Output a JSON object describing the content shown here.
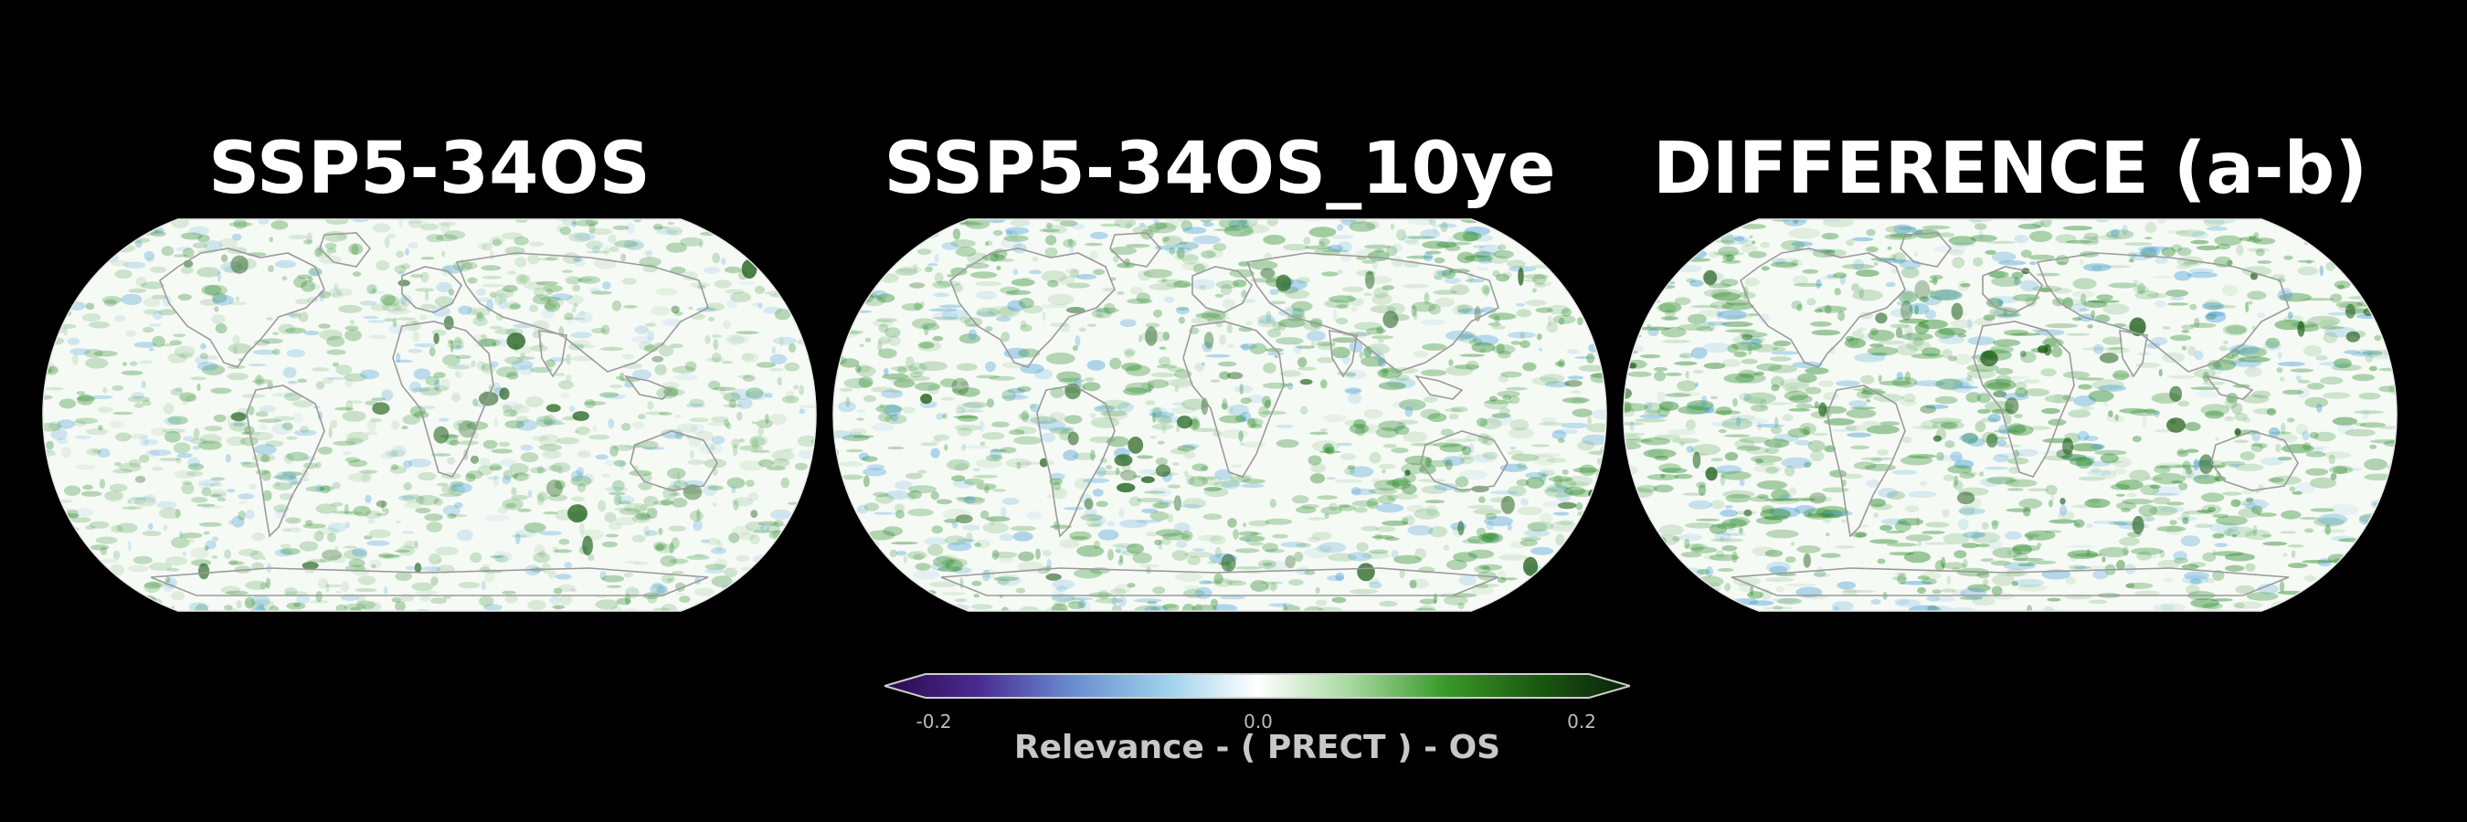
{
  "panels": [
    {
      "title": "SSP5-34OS",
      "name": "panel-ssp5-34os"
    },
    {
      "title": "SSP5-34OS_10ye",
      "name": "panel-ssp5-34os-10ye"
    },
    {
      "title": "DIFFERENCE (a-b)",
      "name": "panel-difference"
    }
  ],
  "colorbar": {
    "label": "Relevance - ( PRECT ) - OS",
    "ticks": [
      "-0.2",
      "0.0",
      "0.2"
    ],
    "min": -0.2,
    "max": 0.2,
    "colors": [
      "#2a0a4a",
      "#4a2a90",
      "#6a8ad0",
      "#9ad0ea",
      "#ffffff",
      "#a8d8a0",
      "#3a9a2a",
      "#1a5a10",
      "#0a200a"
    ]
  },
  "colors": {
    "background": "#000000",
    "map_base": "#f6faf5",
    "positive": "#2e8b2e",
    "negative": "#4a9fd8",
    "coastline": "#9a9a9a"
  }
}
